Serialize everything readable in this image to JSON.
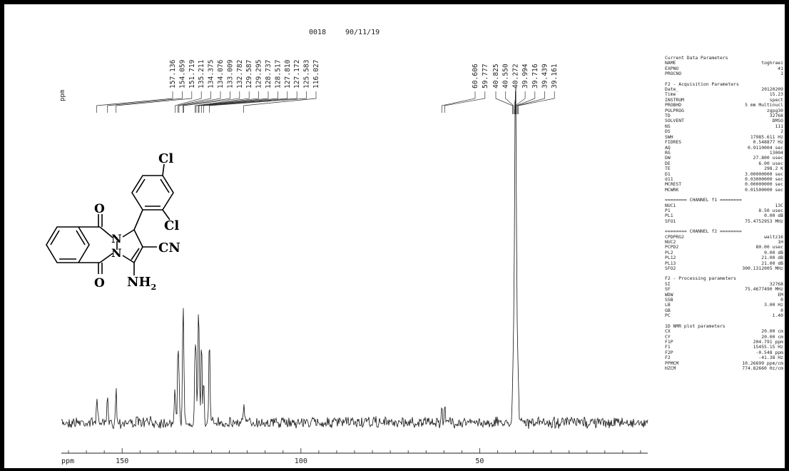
{
  "header": {
    "run_id": "0018",
    "date": "90/11/19"
  },
  "chart_data": {
    "type": "line",
    "title": "",
    "xlabel": "ppm",
    "ylabel": "ppm",
    "xlim": [
      167,
      3
    ],
    "x_ticks": [
      150,
      100,
      50
    ],
    "peak_labels": [
      "157.136",
      "154.059",
      "151.719",
      "135.211",
      "134.375",
      "134.076",
      "133.009",
      "132.782",
      "129.587",
      "129.295",
      "128.737",
      "128.517",
      "127.810",
      "127.172",
      "125.583",
      "116.027",
      "60.606",
      "59.777",
      "40.825",
      "40.550",
      "40.272",
      "39.994",
      "39.716",
      "39.439",
      "39.161"
    ],
    "peaks": [
      {
        "x": 157.1,
        "h": 0.09
      },
      {
        "x": 154.1,
        "h": 0.08
      },
      {
        "x": 151.7,
        "h": 0.11
      },
      {
        "x": 135.2,
        "h": 0.11
      },
      {
        "x": 134.4,
        "h": 0.21
      },
      {
        "x": 134.1,
        "h": 0.14
      },
      {
        "x": 133.0,
        "h": 0.3
      },
      {
        "x": 132.8,
        "h": 0.16
      },
      {
        "x": 129.6,
        "h": 0.22
      },
      {
        "x": 129.3,
        "h": 0.18
      },
      {
        "x": 128.7,
        "h": 0.24
      },
      {
        "x": 128.5,
        "h": 0.2
      },
      {
        "x": 127.8,
        "h": 0.26
      },
      {
        "x": 127.2,
        "h": 0.15
      },
      {
        "x": 125.6,
        "h": 0.28
      },
      {
        "x": 116.0,
        "h": 0.06
      },
      {
        "x": 60.6,
        "h": 0.06
      },
      {
        "x": 59.8,
        "h": 0.06
      },
      {
        "x": 40.8,
        "h": 0.08
      },
      {
        "x": 40.55,
        "h": 0.18
      },
      {
        "x": 40.27,
        "h": 0.4
      },
      {
        "x": 39.99,
        "h": 1.0
      },
      {
        "x": 39.72,
        "h": 0.4
      },
      {
        "x": 39.44,
        "h": 0.18
      },
      {
        "x": 39.16,
        "h": 0.08
      }
    ]
  },
  "molecule": {
    "substituent_cl_top": "Cl",
    "substituent_cl_ortho": "Cl",
    "nitrile": "CN",
    "amine": "NH",
    "amine_sub": "2",
    "oxygen_top": "O",
    "oxygen_bottom": "O",
    "nitrogen_top": "N",
    "nitrogen_bottom": "N"
  },
  "parameters": {
    "sections": [
      {
        "title": "Current Data Parameters",
        "rows": [
          [
            "NAME",
            "toghraei"
          ],
          [
            "EXPNO",
            "41"
          ],
          [
            "PROCNO",
            "1"
          ]
        ]
      },
      {
        "title": "F2 - Acquisition Parameters",
        "rows": [
          [
            "Date_",
            "20120209"
          ],
          [
            "Time",
            "15.23"
          ],
          [
            "INSTRUM",
            "spect"
          ],
          [
            "PROBHD",
            "5 mm Multinucl"
          ],
          [
            "PULPROG",
            "zgpg30"
          ],
          [
            "TD",
            "32768"
          ],
          [
            "SOLVENT",
            "DMSO"
          ],
          [
            "NS",
            "111"
          ],
          [
            "DS",
            "2"
          ],
          [
            "SWH",
            "17985.611 Hz"
          ],
          [
            "FIDRES",
            "0.548877 Hz"
          ],
          [
            "AQ",
            "0.9110004 sec"
          ],
          [
            "RG",
            "13004"
          ],
          [
            "DW",
            "27.800 usec"
          ],
          [
            "DE",
            "6.00 usec"
          ],
          [
            "TE",
            "298.2 K"
          ],
          [
            "D1",
            "3.00000000 sec"
          ],
          [
            "d11",
            "0.03000000 sec"
          ],
          [
            "MCREST",
            "0.00000000 sec"
          ],
          [
            "MCWRK",
            "0.01500000 sec"
          ]
        ]
      },
      {
        "title": "======== CHANNEL f1 ========",
        "rows": [
          [
            "NUC1",
            "13C"
          ],
          [
            "P1",
            "8.50 usec"
          ],
          [
            "PL1",
            "0.00 dB"
          ],
          [
            "SFO1",
            "75.4752953 MHz"
          ]
        ]
      },
      {
        "title": "======== CHANNEL f2 ========",
        "rows": [
          [
            "CPDPRG2",
            "waltz16"
          ],
          [
            "NUC2",
            "1H"
          ],
          [
            "PCPD2",
            "80.00 usec"
          ],
          [
            "PL2",
            "0.00 dB"
          ],
          [
            "PL12",
            "21.00 dB"
          ],
          [
            "PL13",
            "21.00 dB"
          ],
          [
            "SFO2",
            "300.1312005 MHz"
          ]
        ]
      },
      {
        "title": "F2 - Processing parameters",
        "rows": [
          [
            "SI",
            "32768"
          ],
          [
            "SF",
            "75.4677490 MHz"
          ],
          [
            "WDW",
            "EM"
          ],
          [
            "SSB",
            "0"
          ],
          [
            "LB",
            "3.00 Hz"
          ],
          [
            "GB",
            "0"
          ],
          [
            "PC",
            "1.40"
          ]
        ]
      },
      {
        "title": "1D NMR plot parameters",
        "rows": [
          [
            "CX",
            "20.00 cm"
          ],
          [
            "CY",
            "20.00 cm"
          ],
          [
            "F1P",
            "204.791 ppm"
          ],
          [
            "F1",
            "15455.15 Hz"
          ],
          [
            "F2P",
            "-0.548 ppm"
          ],
          [
            "F2",
            "-41.38 Hz"
          ],
          [
            "PPMCM",
            "10.26699 ppm/cm"
          ],
          [
            "HZCM",
            "774.82660 Hz/cm"
          ]
        ]
      }
    ]
  }
}
